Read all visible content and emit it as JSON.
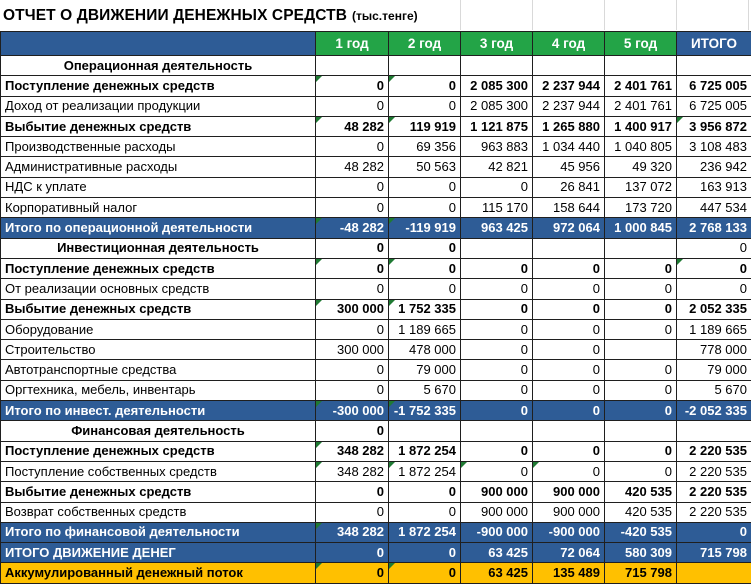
{
  "title": {
    "main": "ОТЧЕТ О ДВИЖЕНИИ ДЕНЕЖНЫХ СРЕДСТВ",
    "unit": "(тыс.тенге)"
  },
  "colors": {
    "navy": "#2E5C96",
    "green": "#23A447",
    "yellow": "#FFC000",
    "error_triangle": "#1F7A33",
    "gridline": "#1f1f1f",
    "faint_gridline": "#d9d9d9"
  },
  "table": {
    "header": [
      "",
      "1 год",
      "2 год",
      "3 год",
      "4 год",
      "5 год",
      "ИТОГО"
    ],
    "rows": [
      {
        "type": "section",
        "label": "Операционная деятельность",
        "values": [
          "",
          "",
          "",
          "",
          "",
          ""
        ],
        "triangles": []
      },
      {
        "type": "bold",
        "label": "Поступление денежных средств",
        "values": [
          "0",
          "0",
          "2 085 300",
          "2 237 944",
          "2 401 761",
          "6 725 005"
        ],
        "triangles": [
          0,
          1
        ]
      },
      {
        "type": "normal",
        "label": "Доход от реализации продукции",
        "values": [
          "0",
          "0",
          "2 085 300",
          "2 237 944",
          "2 401 761",
          "6 725 005"
        ],
        "triangles": []
      },
      {
        "type": "bold",
        "label": "Выбытие денежных средств",
        "values": [
          "48 282",
          "119 919",
          "1 121 875",
          "1 265 880",
          "1 400 917",
          "3 956 872"
        ],
        "triangles": [
          0,
          1,
          5
        ]
      },
      {
        "type": "normal",
        "label": "Производственные расходы",
        "values": [
          "0",
          "69 356",
          "963 883",
          "1 034 440",
          "1 040 805",
          "3 108 483"
        ],
        "triangles": []
      },
      {
        "type": "normal",
        "label": "Административные расходы",
        "values": [
          "48 282",
          "50 563",
          "42 821",
          "45 956",
          "49 320",
          "236 942"
        ],
        "triangles": []
      },
      {
        "type": "normal",
        "label": "НДС к уплате",
        "values": [
          "0",
          "0",
          "0",
          "26 841",
          "137 072",
          "163 913"
        ],
        "triangles": []
      },
      {
        "type": "normal",
        "label": "Корпоративный налог",
        "values": [
          "0",
          "0",
          "115 170",
          "158 644",
          "173 720",
          "447 534"
        ],
        "triangles": []
      },
      {
        "type": "total",
        "label": "Итого по операционной деятельности",
        "values": [
          "-48 282",
          "-119 919",
          "963 425",
          "972 064",
          "1 000 845",
          "2 768 133"
        ],
        "triangles": [
          0,
          1
        ]
      },
      {
        "type": "section",
        "label": "Инвестиционная деятельность",
        "values": [
          "0",
          "0",
          "",
          "",
          "",
          "0"
        ],
        "triangles": [],
        "light": [
          5
        ]
      },
      {
        "type": "bold",
        "label": "Поступление денежных средств",
        "values": [
          "0",
          "0",
          "0",
          "0",
          "0",
          "0"
        ],
        "triangles": [
          0,
          1,
          5
        ]
      },
      {
        "type": "normal",
        "label": "От реализации основных средств",
        "values": [
          "0",
          "0",
          "0",
          "0",
          "0",
          "0"
        ],
        "triangles": []
      },
      {
        "type": "bold",
        "label": "Выбытие денежных средств",
        "values": [
          "300 000",
          "1 752 335",
          "0",
          "0",
          "0",
          "2 052 335"
        ],
        "triangles": [
          0,
          1
        ]
      },
      {
        "type": "normal",
        "label": "Оборудование",
        "values": [
          "0",
          "1 189 665",
          "0",
          "0",
          "0",
          "1 189 665"
        ],
        "triangles": []
      },
      {
        "type": "normal",
        "label": "Строительство",
        "values": [
          "300 000",
          "478 000",
          "0",
          "0",
          "",
          "778 000"
        ],
        "triangles": []
      },
      {
        "type": "normal",
        "label": "Автотранспортные средства",
        "values": [
          "0",
          "79 000",
          "0",
          "0",
          "0",
          "79 000"
        ],
        "triangles": []
      },
      {
        "type": "normal",
        "label": "Оргтехника, мебель, инвентарь",
        "values": [
          "0",
          "5 670",
          "0",
          "0",
          "0",
          "5 670"
        ],
        "triangles": []
      },
      {
        "type": "total",
        "label": "Итого по инвест. деятельности",
        "values": [
          "-300 000",
          "-1 752 335",
          "0",
          "0",
          "0",
          "-2 052 335"
        ],
        "triangles": [
          0,
          1
        ]
      },
      {
        "type": "section",
        "label": "Финансовая деятельность",
        "values": [
          "0",
          "",
          "",
          "",
          "",
          ""
        ],
        "triangles": []
      },
      {
        "type": "bold",
        "label": "Поступление денежных средств",
        "values": [
          "348 282",
          "1 872 254",
          "0",
          "0",
          "0",
          "2 220 535"
        ],
        "triangles": [
          0
        ]
      },
      {
        "type": "normal",
        "label": "Поступление собственных средств",
        "values": [
          "348 282",
          "1 872 254",
          "0",
          "0",
          "0",
          "2 220 535"
        ],
        "triangles": [
          0,
          1,
          2,
          3
        ]
      },
      {
        "type": "bold",
        "label": "Выбытие денежных средств",
        "values": [
          "0",
          "0",
          "900 000",
          "900 000",
          "420 535",
          "2 220 535"
        ],
        "triangles": []
      },
      {
        "type": "normal",
        "label": "Возврат  собственных средств",
        "values": [
          "0",
          "0",
          "900 000",
          "900 000",
          "420 535",
          "2 220 535"
        ],
        "triangles": []
      },
      {
        "type": "total",
        "label": "Итого по финансовой деятельности",
        "values": [
          "348 282",
          "1 872 254",
          "-900 000",
          "-900 000",
          "-420 535",
          "0"
        ],
        "triangles": [
          0
        ]
      },
      {
        "type": "total",
        "label": "ИТОГО ДВИЖЕНИЕ ДЕНЕГ",
        "values": [
          "0",
          "0",
          "63 425",
          "72 064",
          "580 309",
          "715 798"
        ],
        "triangles": []
      },
      {
        "type": "accum",
        "label": "Аккумулированный денежный поток",
        "values": [
          "0",
          "0",
          "63 425",
          "135 489",
          "715 798",
          ""
        ],
        "triangles": [
          0,
          1
        ]
      }
    ]
  }
}
